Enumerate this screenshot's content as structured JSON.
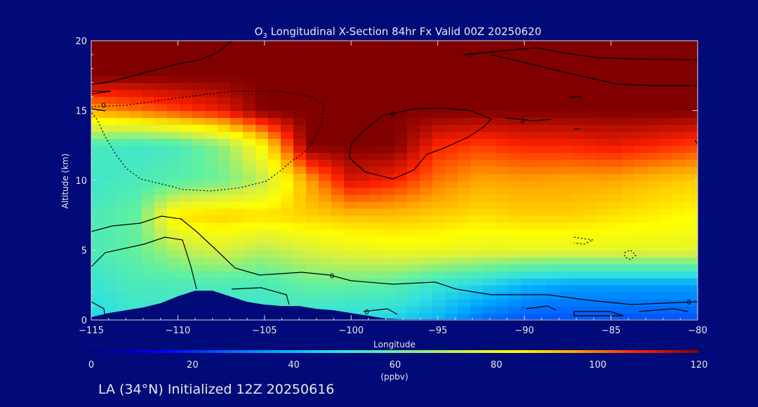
{
  "chart_data": {
    "type": "heatmap",
    "title_prefix": "O",
    "title_sub": "3",
    "title_rest": " Longitudinal X-Section 84hr  Fx Valid 00Z 20250620",
    "xlabel": "Longitude",
    "ylabel": "Altitude (km)",
    "xlim": [
      -115,
      -80
    ],
    "ylim": [
      0,
      20
    ],
    "x_ticks": [
      -115,
      -110,
      -105,
      -100,
      -95,
      -90,
      -85,
      -80
    ],
    "x_tick_labels": [
      "−115",
      "−110",
      "−105",
      "−100",
      "−95",
      "−90",
      "−85",
      "−80"
    ],
    "y_ticks": [
      0,
      5,
      10,
      15,
      20
    ],
    "y_tick_labels": [
      "0",
      "5",
      "10",
      "15",
      "20"
    ],
    "colorbar": {
      "min": 0,
      "max": 120,
      "ticks": [
        0,
        20,
        40,
        60,
        80,
        100,
        120
      ],
      "tick_labels": [
        "0",
        "20",
        "40",
        "60",
        "80",
        "100",
        "120"
      ],
      "unit": "(ppbv)",
      "colormap": "rainbow (blue-cyan-green-yellow-red-darkred)"
    },
    "contour_labels": [
      {
        "lon": -114.3,
        "alt": 15.4,
        "text": "0"
      },
      {
        "lon": -101.1,
        "alt": 3.2,
        "text": "0"
      },
      {
        "lon": -99.1,
        "alt": 0.6,
        "text": "0"
      },
      {
        "lon": -97.6,
        "alt": 14.8,
        "text": "0"
      },
      {
        "lon": -93.1,
        "alt": 19.0,
        "text": "0"
      },
      {
        "lon": -90.1,
        "alt": 14.3,
        "text": "0"
      },
      {
        "lon": -80.5,
        "alt": 1.3,
        "text": "0"
      }
    ],
    "terrain_profile": [
      [
        -115,
        0.2
      ],
      [
        -114,
        0.5
      ],
      [
        -113,
        0.7
      ],
      [
        -112,
        0.9
      ],
      [
        -111,
        1.2
      ],
      [
        -110,
        1.7
      ],
      [
        -109,
        2.1
      ],
      [
        -108,
        2.1
      ],
      [
        -107,
        1.7
      ],
      [
        -106,
        1.3
      ],
      [
        -105,
        1.1
      ],
      [
        -104,
        1.0
      ],
      [
        -103,
        1.0
      ],
      [
        -102,
        0.8
      ],
      [
        -101,
        0.7
      ],
      [
        -100,
        0.5
      ],
      [
        -99,
        0.3
      ],
      [
        -98,
        0.1
      ],
      [
        -97,
        0.05
      ],
      [
        -80,
        0.05
      ]
    ],
    "ozone_field": {
      "lons": [
        -115,
        -112.5,
        -110,
        -107.5,
        -105,
        -102.5,
        -100,
        -97.5,
        -95,
        -92.5,
        -90,
        -87.5,
        -85,
        -82.5,
        -80
      ],
      "alts": [
        0,
        2.5,
        5,
        7.5,
        10,
        12.5,
        15,
        17.5,
        20
      ],
      "values_ppbv": [
        [
          45,
          50,
          52,
          52,
          50,
          48,
          46,
          44,
          38,
          28,
          25,
          25,
          25,
          25,
          25
        ],
        [
          50,
          55,
          55,
          55,
          55,
          60,
          60,
          58,
          50,
          45,
          38,
          35,
          35,
          35,
          35
        ],
        [
          55,
          60,
          70,
          75,
          70,
          75,
          78,
          80,
          80,
          78,
          78,
          78,
          78,
          78,
          78
        ],
        [
          55,
          60,
          88,
          90,
          88,
          90,
          92,
          92,
          90,
          88,
          90,
          90,
          88,
          86,
          84
        ],
        [
          52,
          55,
          58,
          62,
          72,
          95,
          112,
          108,
          100,
          95,
          96,
          95,
          95,
          92,
          90
        ],
        [
          55,
          52,
          55,
          65,
          85,
          120,
          120,
          120,
          108,
          105,
          108,
          108,
          110,
          108,
          105
        ],
        [
          95,
          100,
          105,
          110,
          120,
          120,
          120,
          120,
          120,
          120,
          120,
          120,
          120,
          120,
          120
        ],
        [
          120,
          120,
          120,
          120,
          120,
          120,
          120,
          120,
          120,
          120,
          120,
          120,
          120,
          120,
          120
        ],
        [
          120,
          120,
          120,
          120,
          120,
          120,
          120,
          120,
          120,
          120,
          120,
          120,
          120,
          120,
          120
        ]
      ]
    }
  },
  "footer": {
    "init_label": "LA (34°N) Initialized 12Z 20250616"
  }
}
